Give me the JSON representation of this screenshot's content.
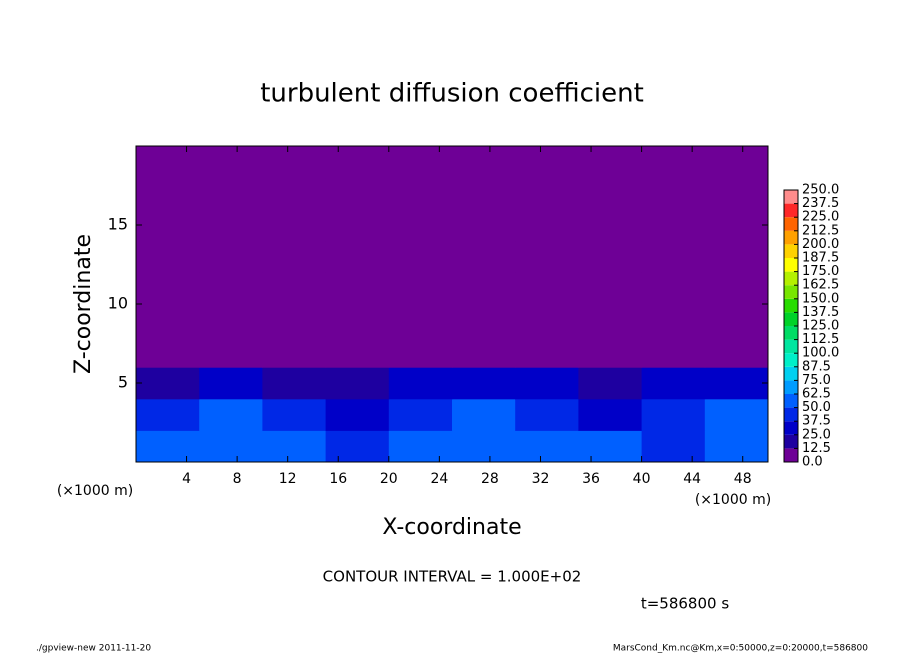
{
  "chart_data": {
    "type": "heatmap",
    "title": "turbulent diffusion coefficient",
    "xlabel": "X-coordinate",
    "ylabel": "Z-coordinate",
    "x_unit": "(×1000 m)",
    "x_unit_right": "(×1000 m)",
    "contour_note": "CONTOUR INTERVAL = 1.000E+02",
    "time_note": "t=586800 s",
    "footer_left": "./gpview-new   2011-11-20",
    "footer_right": "MarsCond_Km.nc@Km,x=0:50000,z=0:20000,t=586800",
    "xlim": [
      0,
      50
    ],
    "ylim": [
      0,
      20
    ],
    "xticks": [
      4,
      8,
      12,
      16,
      20,
      24,
      28,
      32,
      36,
      40,
      44,
      48
    ],
    "yticks": [
      5,
      10,
      15
    ],
    "x_bins": [
      0,
      5,
      10,
      15,
      20,
      25,
      30,
      35,
      40,
      45,
      50
    ],
    "y_bins": [
      0,
      2,
      4,
      6,
      8,
      10,
      12,
      14,
      16,
      18,
      20
    ],
    "values": [
      [
        60,
        55,
        50,
        45,
        55,
        55,
        50,
        50,
        45,
        60
      ],
      [
        45,
        50,
        40,
        35,
        45,
        50,
        40,
        35,
        40,
        50
      ],
      [
        20,
        25,
        20,
        15,
        25,
        30,
        25,
        20,
        25,
        30
      ],
      [
        5,
        5,
        10,
        5,
        5,
        5,
        5,
        5,
        10,
        10
      ],
      [
        5,
        5,
        5,
        5,
        5,
        5,
        5,
        5,
        5,
        8
      ],
      [
        3,
        3,
        3,
        3,
        3,
        3,
        3,
        3,
        3,
        3
      ],
      [
        3,
        3,
        3,
        3,
        3,
        3,
        3,
        3,
        3,
        3
      ],
      [
        3,
        3,
        3,
        3,
        3,
        3,
        3,
        3,
        3,
        3
      ],
      [
        3,
        3,
        3,
        3,
        3,
        3,
        3,
        3,
        3,
        3
      ],
      [
        3,
        3,
        3,
        3,
        3,
        3,
        3,
        3,
        3,
        3
      ]
    ],
    "levels": [
      {
        "value": 0,
        "label": "0.0"
      },
      {
        "value": 12.5,
        "label": "12.5"
      },
      {
        "value": 25,
        "label": "25.0"
      },
      {
        "value": 37.5,
        "label": "37.5"
      },
      {
        "value": 50,
        "label": "50.0"
      },
      {
        "value": 62.5,
        "label": "62.5"
      },
      {
        "value": 75,
        "label": "75.0"
      },
      {
        "value": 87.5,
        "label": "87.5"
      },
      {
        "value": 100,
        "label": "100.0"
      },
      {
        "value": 112.5,
        "label": "112.5"
      },
      {
        "value": 125,
        "label": "125.0"
      },
      {
        "value": 137.5,
        "label": "137.5"
      },
      {
        "value": 150,
        "label": "150.0"
      },
      {
        "value": 162.5,
        "label": "162.5"
      },
      {
        "value": 175,
        "label": "175.0"
      },
      {
        "value": 187.5,
        "label": "187.5"
      },
      {
        "value": 200,
        "label": "200.0"
      },
      {
        "value": 212.5,
        "label": "212.5"
      },
      {
        "value": 225,
        "label": "225.0"
      },
      {
        "value": 237.5,
        "label": "237.5"
      },
      {
        "value": 250,
        "label": "250.0"
      }
    ],
    "colors": [
      "#6e0096",
      "#1e00a0",
      "#0000c8",
      "#0028e6",
      "#0060ff",
      "#009cff",
      "#00d0f0",
      "#00f0c8",
      "#00e6a0",
      "#00dc64",
      "#00d228",
      "#28dc00",
      "#78e600",
      "#b4f000",
      "#ffff00",
      "#ffd200",
      "#ffa000",
      "#ff6400",
      "#ff2828",
      "#ff8c8c"
    ]
  }
}
